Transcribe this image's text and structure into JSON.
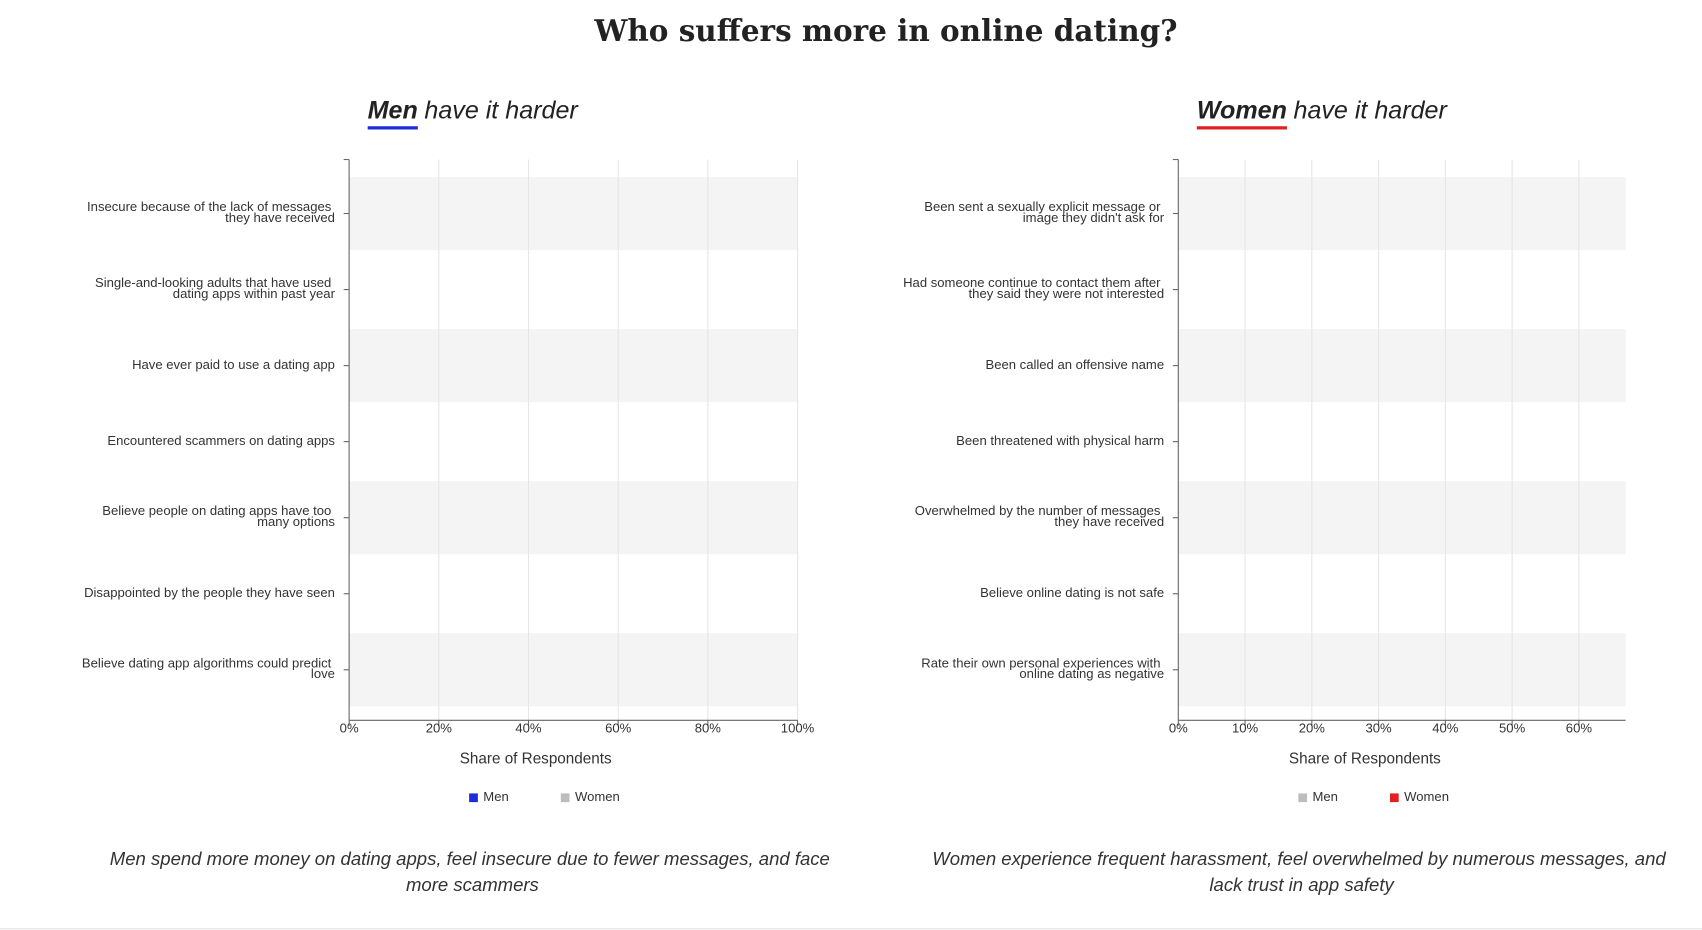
{
  "title": "Who suffers more in online dating?",
  "chart_data": [
    {
      "type": "bar",
      "orientation": "horizontal",
      "subtitle_emphasis": "Men",
      "subtitle_rest": "have it harder",
      "categories": [
        "Insecure because of the lack of messages they have received",
        "Single-and-looking adults that have used dating apps within past year",
        "Have ever paid to use a dating app",
        "Encountered scammers on dating apps",
        "Believe people on dating apps have too many options",
        "Disappointed by the people they have seen",
        "Believe dating app algorithms could predict love"
      ],
      "series": [
        {
          "name": "Men",
          "color": "#1f2bd6"
        },
        {
          "name": "Women",
          "color": "#bdbdbd"
        }
      ],
      "xlim": [
        0,
        100
      ],
      "xticks": [
        {
          "value": 0,
          "label": "0%"
        },
        {
          "value": 20,
          "label": "20%"
        },
        {
          "value": 40,
          "label": "40%"
        },
        {
          "value": 60,
          "label": "60%"
        },
        {
          "value": 80,
          "label": "80%"
        },
        {
          "value": 100,
          "label": "100%"
        }
      ],
      "xlabel": "Share of Respondents",
      "grid": true,
      "caption": "Men spend more money on dating apps, feel insecure due to fewer messages, and face more scammers"
    },
    {
      "type": "bar",
      "orientation": "horizontal",
      "subtitle_emphasis": "Women",
      "subtitle_rest": "have it harder",
      "categories": [
        "Been sent a sexually explicit message or image they didn't ask for",
        "Had someone continue to contact them after they said they were not interested",
        "Been called an offensive name",
        "Been threatened with physical harm",
        "Overwhelmed by the number of messages they have received",
        "Believe online dating is not safe",
        "Rate their own personal experiences with online dating as negative"
      ],
      "series": [
        {
          "name": "Men",
          "color": "#bdbdbd"
        },
        {
          "name": "Women",
          "color": "#e02020"
        }
      ],
      "xlim": [
        0,
        67
      ],
      "xticks": [
        {
          "value": 0,
          "label": "0%"
        },
        {
          "value": 10,
          "label": "10%"
        },
        {
          "value": 20,
          "label": "20%"
        },
        {
          "value": 30,
          "label": "30%"
        },
        {
          "value": 40,
          "label": "40%"
        },
        {
          "value": 50,
          "label": "50%"
        },
        {
          "value": 60,
          "label": "60%"
        }
      ],
      "xlabel": "Share of Respondents",
      "grid": true,
      "caption": "Women experience frequent harassment, feel overwhelmed by numerous messages, and lack trust in app safety"
    }
  ]
}
